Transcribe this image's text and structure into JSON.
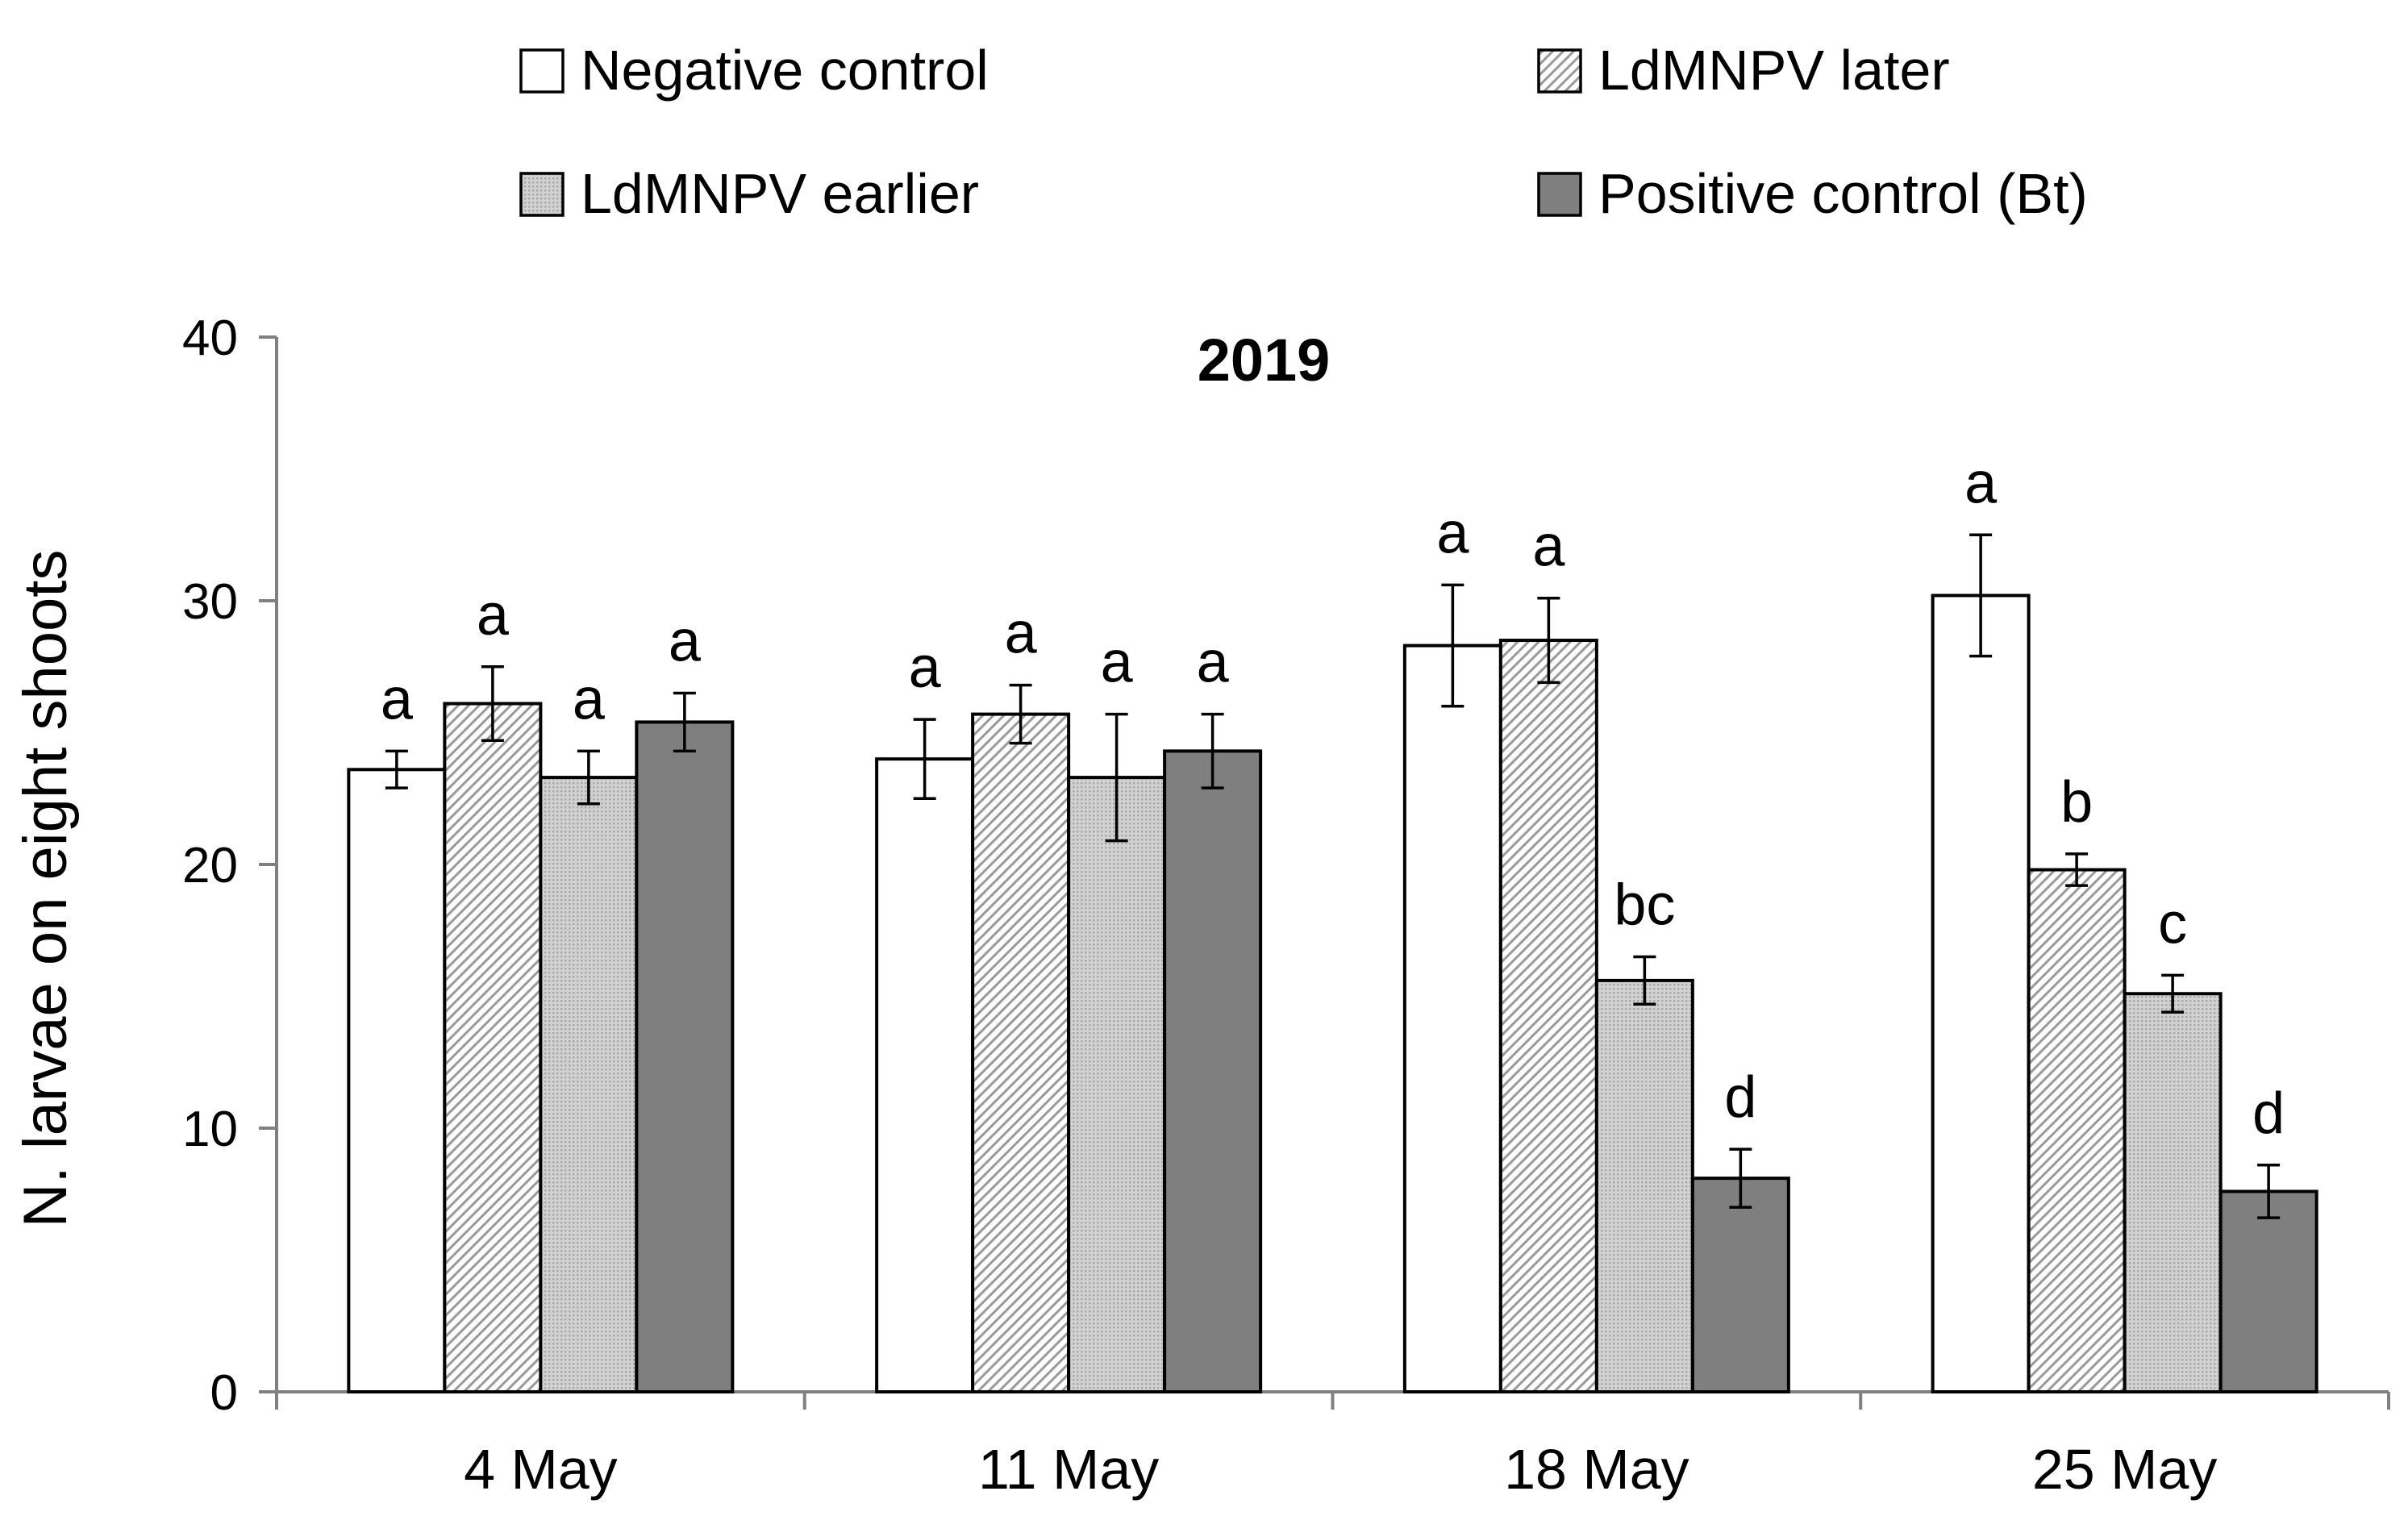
{
  "chart_data": {
    "type": "bar",
    "title": "2019",
    "xlabel": "",
    "ylabel": "N. larvae on eight shoots",
    "ylim": [
      0,
      40
    ],
    "yticks": [
      0,
      10,
      20,
      30,
      40
    ],
    "categories": [
      "4 May",
      "11 May",
      "18 May",
      "25 May"
    ],
    "legend_position": "top",
    "series": [
      {
        "name": "Negative control",
        "style": "open",
        "values": [
          23.6,
          24.0,
          28.3,
          30.2
        ],
        "errors": [
          0.7,
          1.5,
          2.3,
          2.3
        ],
        "letters": [
          "a",
          "a",
          "a",
          "a"
        ]
      },
      {
        "name": "LdMNPV later",
        "style": "hatch",
        "values": [
          26.1,
          25.7,
          28.5,
          19.8
        ],
        "errors": [
          1.4,
          1.1,
          1.6,
          0.6
        ],
        "letters": [
          "a",
          "a",
          "a",
          "b"
        ]
      },
      {
        "name": "LdMNPV earlier",
        "style": "dots",
        "values": [
          23.3,
          23.3,
          15.6,
          15.1
        ],
        "errors": [
          1.0,
          2.4,
          0.9,
          0.7
        ],
        "letters": [
          "a",
          "a",
          "bc",
          "c"
        ]
      },
      {
        "name": "Positive control (Bt)",
        "style": "solid",
        "values": [
          25.4,
          24.3,
          8.1,
          7.6
        ],
        "errors": [
          1.1,
          1.4,
          1.1,
          1.0
        ],
        "letters": [
          "a",
          "a",
          "d",
          "d"
        ]
      }
    ],
    "colors": {
      "open": "#ffffff",
      "solid": "#7f7f7f",
      "hatch_line": "#9a9a9a",
      "dots": "#c4c4c4",
      "outline": "#000000",
      "axis": "#808080"
    }
  }
}
